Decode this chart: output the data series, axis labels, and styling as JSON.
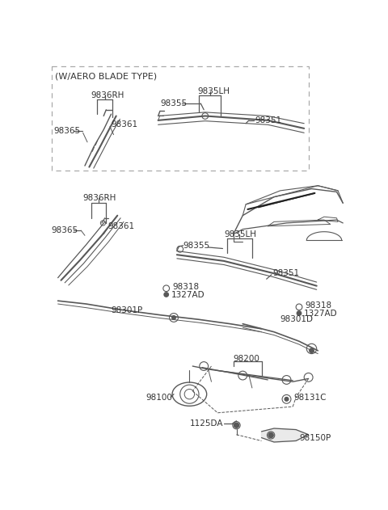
{
  "bg_color": "#ffffff",
  "lc": "#585858",
  "lc2": "#666666",
  "aero_label": "(W/AERO BLADE TYPE)",
  "figsize": [
    4.8,
    6.31
  ],
  "dpi": 100,
  "xlim": [
    0,
    480
  ],
  "ylim": [
    0,
    631
  ]
}
